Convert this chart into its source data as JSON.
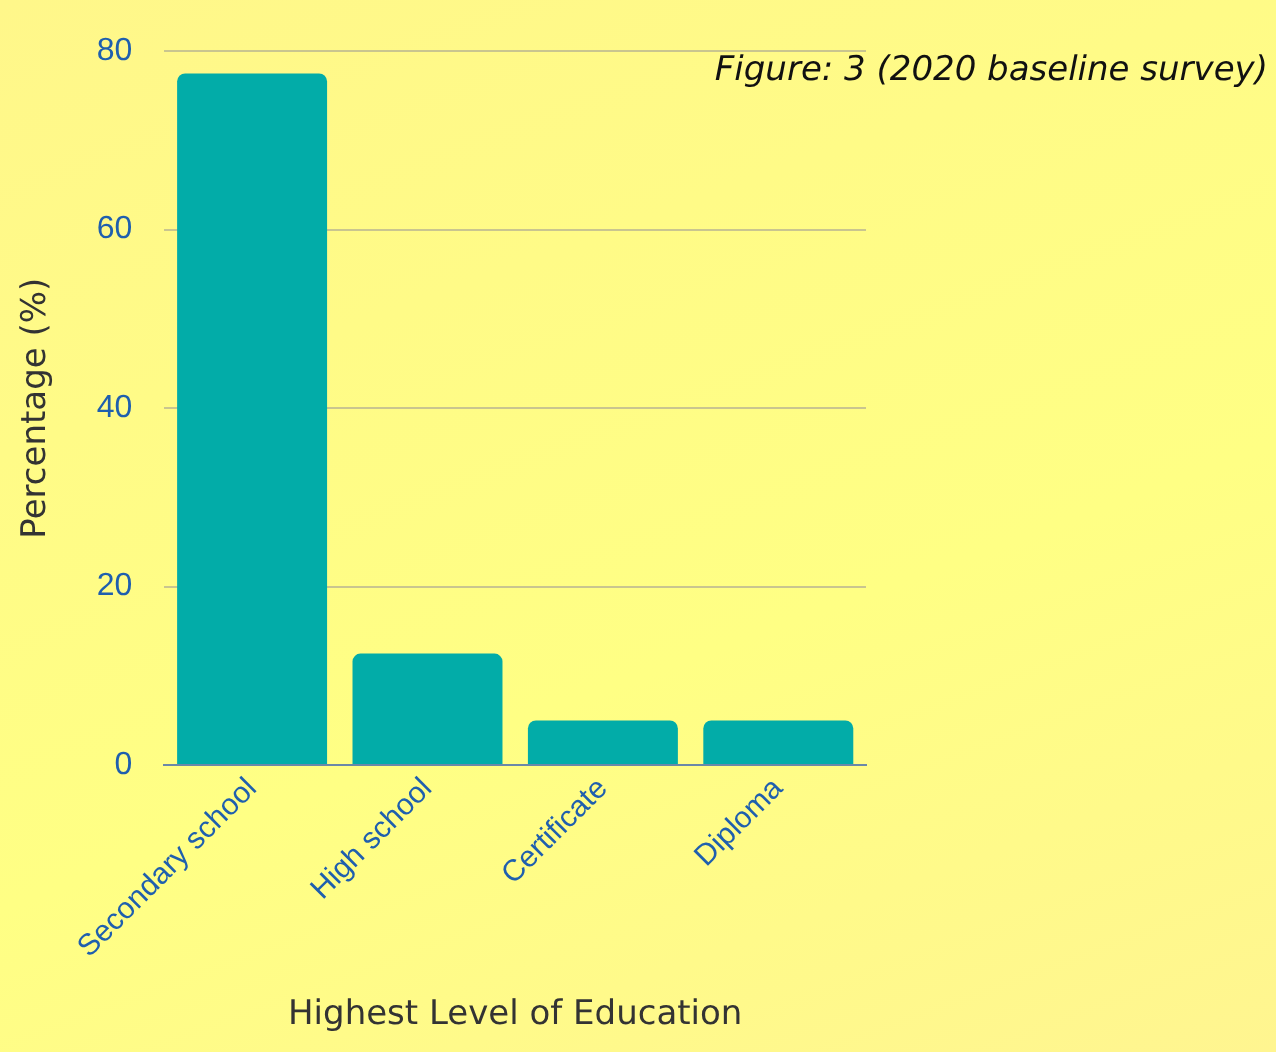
{
  "chart_data": {
    "type": "bar",
    "xlabel": "Highest Level of Education",
    "ylabel": "Percentage (%)",
    "categories": [
      "Secondary school",
      "High school",
      "Certificate",
      "Diploma"
    ],
    "values": [
      77.5,
      12.5,
      5,
      5
    ],
    "color": "#02aca8",
    "ylim": [
      0,
      80
    ],
    "yticks": [
      0,
      20,
      40,
      60,
      80
    ],
    "grid": "y",
    "annotations": [
      "Figure: 3 (2020 baseline survey)"
    ]
  }
}
